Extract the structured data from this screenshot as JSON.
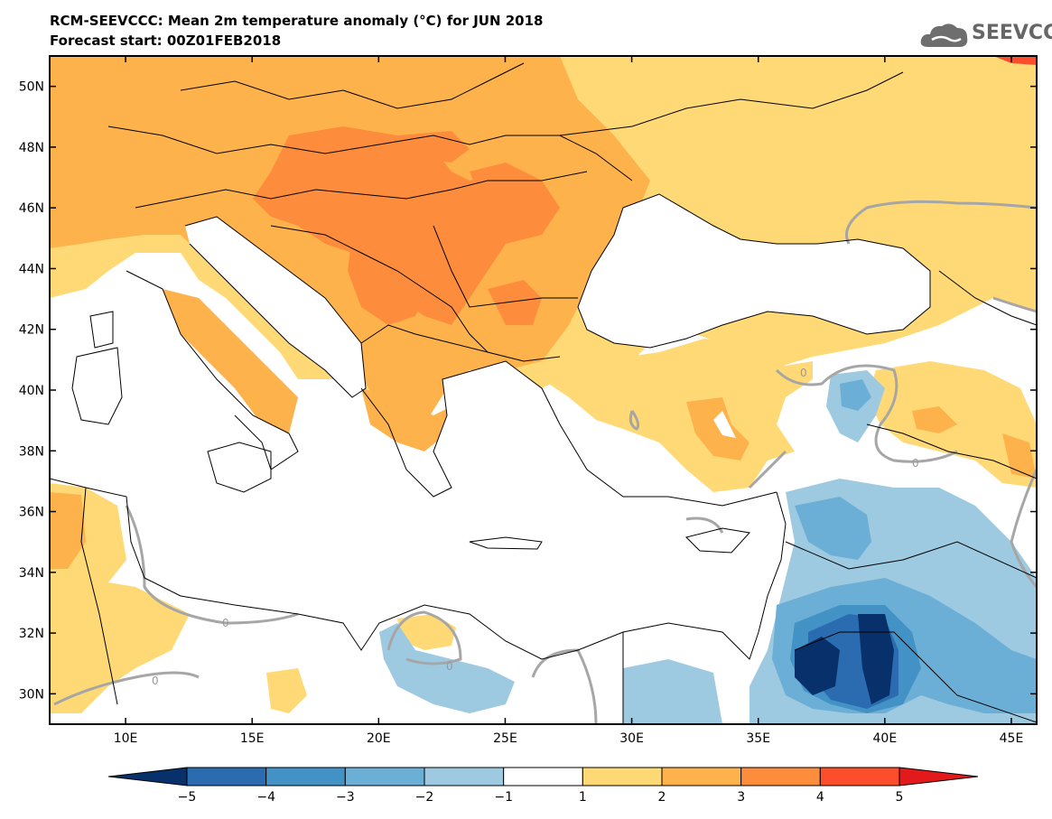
{
  "title_line1": "RCM-SEEVCCC: Mean 2m temperature anomaly (°C) for JUN 2018",
  "title_line2": "Forecast start: 00Z01FEB2018",
  "logo_text": "SEEVCCC",
  "logo_icon": "cloud-icon",
  "map": {
    "lon_range": [
      7,
      46
    ],
    "lat_range": [
      29,
      51
    ],
    "lat_labels": [
      "30N",
      "32N",
      "34N",
      "36N",
      "38N",
      "40N",
      "42N",
      "44N",
      "46N",
      "48N",
      "50N"
    ],
    "lat_values": [
      30,
      32,
      34,
      36,
      38,
      40,
      42,
      44,
      46,
      48,
      50
    ],
    "lon_labels": [
      "10E",
      "15E",
      "20E",
      "25E",
      "30E",
      "35E",
      "40E",
      "45E"
    ],
    "lon_values": [
      10,
      15,
      20,
      25,
      30,
      35,
      40,
      45
    ],
    "contour_label": "0",
    "colors": {
      "-5": "#08306b",
      "-4": "#2166ac",
      "-3": "#4393c3",
      "-2": "#6baed6",
      "-1": "#9ecae1",
      "1": "#ffffff",
      "2": "#fed976",
      "3": "#feb24c",
      "4": "#fd8d3c",
      "5": "#fc4e2a",
      "over": "#e31a1c"
    }
  },
  "colorbar": {
    "labels": [
      "−5",
      "−4",
      "−3",
      "−2",
      "−1",
      "1",
      "2",
      "3",
      "4",
      "5"
    ],
    "colors": [
      "#08306b",
      "#2b6cb0",
      "#4292c6",
      "#6baed6",
      "#9ecae1",
      "#ffffff",
      "#fed976",
      "#feb24c",
      "#fd8d3c",
      "#fc4e2a",
      "#e31a1c"
    ]
  }
}
